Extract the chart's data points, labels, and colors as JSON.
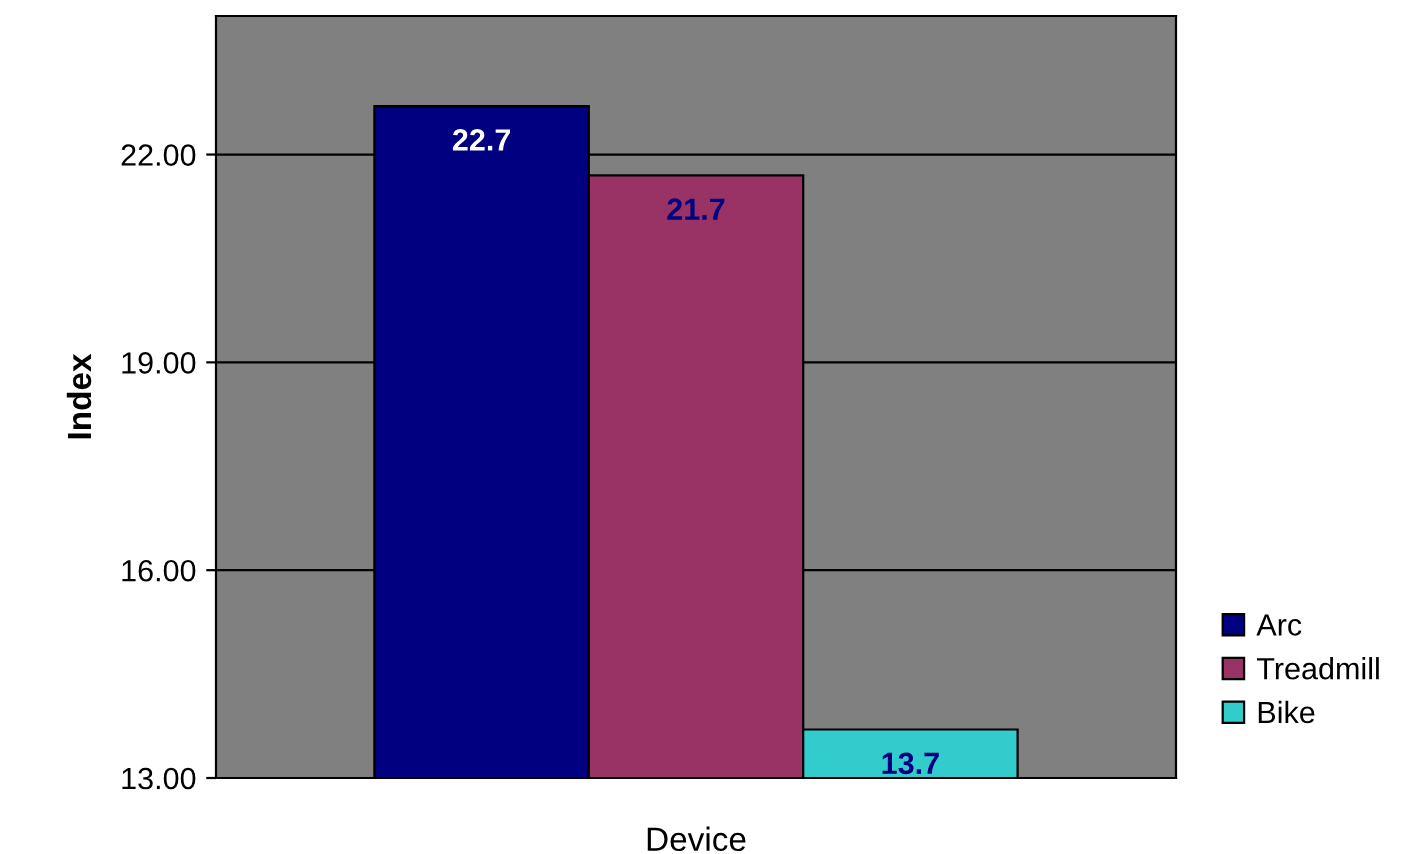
{
  "chart_data": {
    "type": "bar",
    "xlabel": "Device",
    "ylabel": "Index",
    "categories": [
      null
    ],
    "series": [
      {
        "name": "Arc",
        "color": "#000080",
        "values": [
          22.7
        ]
      },
      {
        "name": "Treadmill",
        "color": "#993366",
        "values": [
          21.7
        ]
      },
      {
        "name": "Bike",
        "color": "#33cccc",
        "values": [
          13.7
        ]
      }
    ],
    "ylim": [
      13,
      24
    ],
    "yticks": [
      {
        "value": 13,
        "label": "13.00"
      },
      {
        "value": 16,
        "label": "16.00"
      },
      {
        "value": 19,
        "label": "19.00"
      },
      {
        "value": 22,
        "label": "22.00"
      }
    ],
    "grid": "y",
    "legend": "right",
    "data_labels": true
  }
}
